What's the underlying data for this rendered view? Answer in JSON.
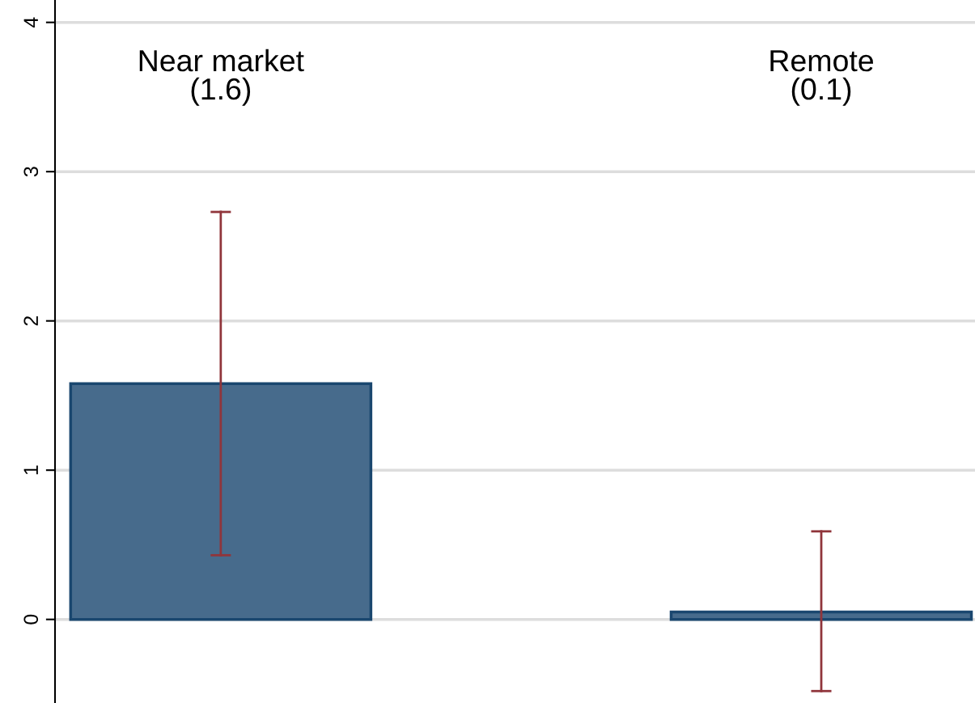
{
  "chart_data": {
    "type": "bar",
    "categories": [
      "Near market\n(1.6)",
      "Remote\n(0.1)"
    ],
    "values": [
      1.58,
      0.05
    ],
    "errors": [
      [
        0.43,
        2.73
      ],
      [
        -0.48,
        0.59
      ]
    ],
    "color": "#476b8c",
    "ylim": [
      -0.56,
      4.15
    ],
    "yticks": [
      0,
      1,
      2,
      3,
      4
    ],
    "grid": "y"
  }
}
